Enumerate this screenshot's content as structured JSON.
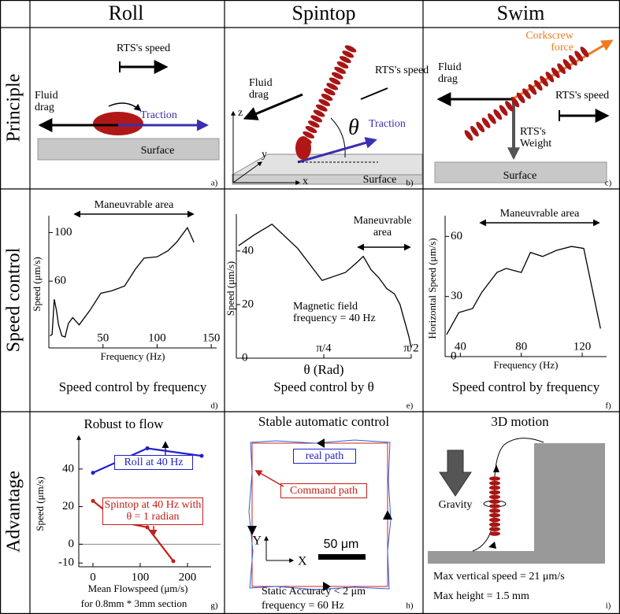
{
  "header": {
    "columns": [
      "Roll",
      "Spintop",
      "Swim"
    ],
    "rows": [
      "Principle",
      "Speed control",
      "Advantage"
    ]
  },
  "panels": {
    "a": {
      "speed": "RTS's speed",
      "drag": "Fluid drag",
      "traction": "Traction",
      "surface": "Surface",
      "letter": "a)"
    },
    "b": {
      "drag": "Fluid drag",
      "speed": "RTS's speed",
      "angle": "θ",
      "traction": "Traction",
      "surface": "Surface",
      "z": "z",
      "y": "y",
      "x": "x",
      "letter": "b)"
    },
    "c": {
      "force": "Corkscrew force",
      "drag": "Fluid drag",
      "speed": "RTS's speed",
      "weight": "RTS's Weight",
      "surface": "Surface",
      "letter": "c)"
    },
    "h": {
      "title": "Stable automatic control",
      "real": "real path",
      "command": "Command path",
      "y": "Y",
      "x": "X",
      "scale": "50 μm",
      "accuracy": "Static Accuracy < 2 μm",
      "frequency": "frequency = 60 Hz",
      "letter": "h)"
    },
    "i": {
      "title": "3D motion",
      "gravity": "Gravity",
      "speed": "Max vertical speed = 21 μm/s",
      "height": "Max height = 1.5 mm",
      "letter": "i)"
    }
  },
  "chart_data": [
    {
      "type": "line",
      "annotation": "Maneuvrable area",
      "xlabel": "Frequency (Hz)",
      "ylabel": "Speed (μm/s)",
      "caption": "Speed control by frequency",
      "letter": "d)",
      "x": [
        1,
        3,
        5,
        7,
        9,
        12,
        15,
        18,
        22,
        28,
        38,
        48,
        58,
        70,
        80,
        88,
        100,
        110,
        118,
        128,
        134
      ],
      "values": [
        15,
        16,
        45,
        36,
        24,
        15,
        14,
        25,
        30,
        24,
        36,
        50,
        52,
        56,
        70,
        79,
        80,
        85,
        92,
        104,
        92
      ],
      "color": "#000000",
      "xlim": [
        0,
        155
      ],
      "ylim": [
        5,
        110
      ],
      "xticks": [
        50,
        100,
        150
      ],
      "yticks": [
        60,
        100
      ]
    },
    {
      "type": "line",
      "annotation": "Maneuvrable area",
      "note": "Magnetic field frequency = 40 Hz",
      "xlabel": "θ (Rad)",
      "ylabel": "Speed (μm/s)",
      "caption": "Speed control by θ",
      "letter": "e)",
      "x": [
        0.02,
        0.16,
        0.32,
        0.55,
        0.77,
        0.98,
        1.09,
        1.14,
        1.21,
        1.28,
        1.35,
        1.42,
        1.47,
        1.51,
        1.55,
        1.57
      ],
      "values": [
        42,
        46,
        50,
        41,
        29,
        32,
        36,
        38,
        33,
        30,
        26,
        24,
        20,
        14,
        8,
        4
      ],
      "color": "#000000",
      "xlim": [
        0,
        1.5708
      ],
      "ylim": [
        0,
        52
      ],
      "xticks": [
        {
          "value": 0.785398,
          "label": "π/4"
        },
        {
          "value": 1.570796,
          "label": "π/2"
        }
      ],
      "yticks": [
        0,
        20,
        40
      ]
    },
    {
      "type": "line",
      "annotation": "Maneuvrable area",
      "xlabel": "Frequency (Hz)",
      "ylabel": "Horizontal Speed (μm/s)",
      "caption": "Speed control by frequency",
      "letter": "f)",
      "x": [
        31,
        39,
        48,
        54,
        64,
        70,
        80,
        86,
        94,
        103,
        113,
        121,
        132
      ],
      "values": [
        11,
        22,
        24,
        32,
        42,
        44,
        42,
        52,
        50,
        53,
        55,
        54,
        14
      ],
      "color": "#000000",
      "xlim": [
        30,
        136
      ],
      "ylim": [
        0,
        68
      ],
      "xticks": [
        40,
        80,
        120
      ],
      "yticks": [
        0,
        30,
        60
      ]
    },
    {
      "type": "line",
      "title": "Robust to flow",
      "xlabel": "Mean Flowspeed (μm/s)",
      "xlabel2": "for 0.8mm * 3mm section",
      "ylabel": "Speed (μm/s)",
      "letter": "g)",
      "xlim": [
        -30,
        250
      ],
      "ylim": [
        -12,
        55
      ],
      "xticks": [
        0,
        100,
        200
      ],
      "yticks": [
        -10,
        0,
        20,
        40
      ],
      "series": [
        {
          "name": "Roll at 40 Hz",
          "color": "#2020c8",
          "x": [
            0,
            115,
            230
          ],
          "values": [
            38,
            51,
            47
          ]
        },
        {
          "name": "Spintop at 40 Hz with θ = 1 radian",
          "color": "#c0201a",
          "x": [
            0,
            55,
            115,
            170
          ],
          "values": [
            23,
            12,
            9,
            -9
          ]
        }
      ]
    }
  ]
}
